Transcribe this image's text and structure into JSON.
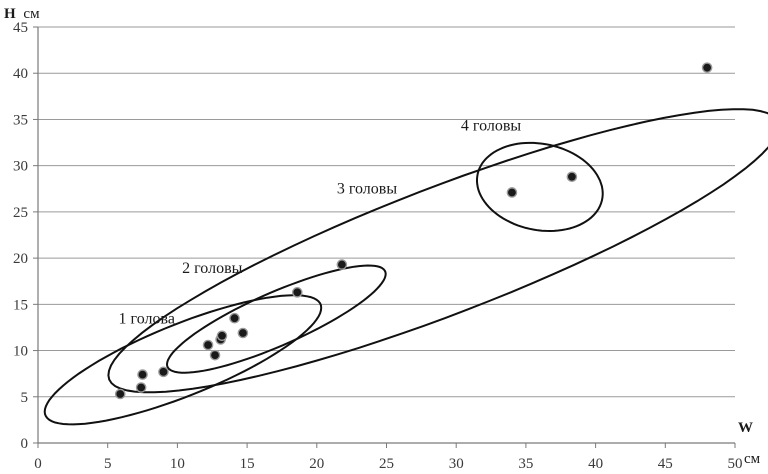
{
  "chart_data": {
    "type": "scatter",
    "title": "",
    "ylabel": {
      "letter": "H",
      "unit": "см"
    },
    "xlabel": {
      "letter": "W",
      "unit": "см"
    },
    "xlim": [
      0,
      50
    ],
    "ylim": [
      0,
      45
    ],
    "x_ticks": [
      0,
      5,
      10,
      15,
      20,
      25,
      30,
      35,
      40,
      45,
      50
    ],
    "y_ticks": [
      0,
      5,
      10,
      15,
      20,
      25,
      30,
      35,
      40,
      45
    ],
    "grid": "horizontal",
    "series": [
      {
        "points": [
          {
            "x": 5.9,
            "y": 5.3
          },
          {
            "x": 7.4,
            "y": 6.0
          },
          {
            "x": 7.5,
            "y": 7.4
          },
          {
            "x": 9.0,
            "y": 7.7
          },
          {
            "x": 12.2,
            "y": 10.6
          },
          {
            "x": 12.7,
            "y": 9.5
          },
          {
            "x": 13.1,
            "y": 11.2
          },
          {
            "x": 13.2,
            "y": 11.6
          },
          {
            "x": 14.1,
            "y": 13.5
          },
          {
            "x": 14.7,
            "y": 11.9
          },
          {
            "x": 18.6,
            "y": 16.3
          },
          {
            "x": 21.8,
            "y": 19.3
          },
          {
            "x": 34.0,
            "y": 27.1
          },
          {
            "x": 38.3,
            "y": 28.8
          },
          {
            "x": 48.0,
            "y": 40.6
          }
        ]
      }
    ],
    "groups": [
      {
        "label": "1 голова",
        "center": [
          10.4,
          9.0
        ],
        "radii": [
          11.6,
          3.55
        ],
        "angle_deg": 33,
        "label_at": [
          7.8,
          12.9
        ]
      },
      {
        "label": "2 головы",
        "center": [
          17.1,
          13.4
        ],
        "radii": [
          9.4,
          2.6
        ],
        "angle_deg": 35,
        "label_at": [
          12.5,
          18.4
        ]
      },
      {
        "label": "3 головы",
        "center": [
          29.1,
          20.8
        ],
        "radii": [
          27.8,
          6.35
        ],
        "angle_deg": 31,
        "label_at": [
          23.6,
          27.0
        ]
      },
      {
        "label": "4 головы",
        "center": [
          36.0,
          27.7
        ],
        "radii": [
          4.25,
          5.0
        ],
        "angle_deg": 35,
        "label_at": [
          32.5,
          33.8
        ]
      }
    ]
  }
}
